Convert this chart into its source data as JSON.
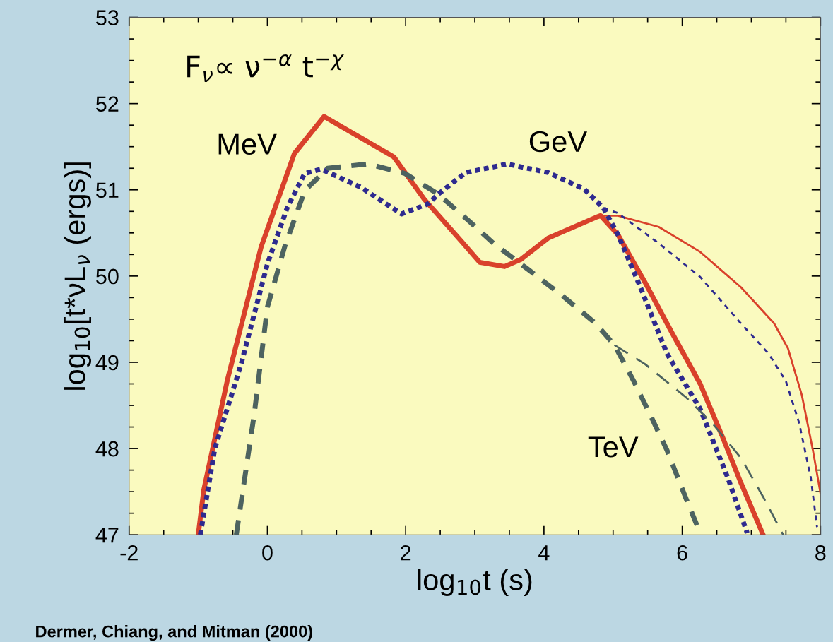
{
  "chart_data": {
    "type": "line",
    "xlabel": "log$_{10}$t (s)",
    "ylabel": "log$_{10}$[t*νL$_{ν}$ (ergs)]",
    "xlim": [
      -2,
      8
    ],
    "ylim": [
      47,
      53
    ],
    "xticks": [
      {
        "value": -2,
        "label": "-2"
      },
      0,
      2,
      4,
      6,
      8
    ],
    "yticks": [
      47,
      48,
      49,
      50,
      51,
      52,
      53
    ],
    "grid": false,
    "series": [
      {
        "name": "MeV",
        "color": "#d9412b",
        "line_style": "solid",
        "x": [
          -1.0,
          -0.92,
          -0.58,
          -0.09,
          0.15,
          0.39,
          0.82,
          1.83,
          2.27,
          2.81,
          3.07,
          3.43,
          3.66,
          4.06,
          4.75,
          4.82,
          5.07,
          5.46,
          5.86,
          6.26,
          6.58,
          6.85,
          7.17
        ],
        "values": [
          47.0,
          47.52,
          48.79,
          50.34,
          50.88,
          51.42,
          51.85,
          51.38,
          50.89,
          50.4,
          50.16,
          50.11,
          50.19,
          50.44,
          50.68,
          50.7,
          50.48,
          49.93,
          49.33,
          48.75,
          48.14,
          47.6,
          47.0
        ]
      },
      {
        "color": "#d9412b",
        "line_style": "solid",
        "x": [
          4.82,
          5.07,
          5.66,
          6.26,
          6.85,
          7.33,
          7.53,
          7.73,
          7.89,
          8.0
        ],
        "values": [
          50.7,
          50.7,
          50.57,
          50.28,
          49.87,
          49.45,
          49.16,
          48.62,
          47.98,
          47.48
        ]
      },
      {
        "name": "GeV",
        "color": "#2e2a8f",
        "line_style": "dotted",
        "x": [
          -0.97,
          -0.76,
          -0.38,
          0.0,
          0.29,
          0.54,
          0.78,
          1.35,
          1.94,
          2.33,
          2.47,
          2.87,
          3.47,
          4.06,
          4.58,
          4.86,
          5.07,
          5.38,
          5.78,
          6.26,
          6.66,
          6.94
        ],
        "values": [
          47.0,
          48.0,
          48.98,
          50.14,
          50.8,
          51.19,
          51.24,
          51.03,
          50.72,
          50.84,
          50.95,
          51.2,
          51.3,
          51.2,
          51.01,
          50.79,
          50.48,
          49.9,
          49.1,
          48.46,
          47.66,
          47.02
        ]
      },
      {
        "color": "#2e2a8f",
        "line_style": "dotted",
        "x": [
          4.86,
          5.07,
          5.66,
          6.26,
          6.85,
          7.25,
          7.5,
          7.69,
          7.86,
          7.95
        ],
        "values": [
          50.79,
          50.73,
          50.38,
          49.99,
          49.45,
          49.1,
          48.78,
          48.3,
          47.66,
          47.09
        ]
      },
      {
        "name": "TeV",
        "color": "#4d6360",
        "line_style": "dashed",
        "x": [
          -0.45,
          -0.19,
          0.0,
          0.25,
          0.54,
          0.87,
          1.46,
          1.99,
          2.47,
          2.9,
          3.27,
          3.75,
          4.27,
          4.75,
          5.02,
          5.3,
          5.55,
          5.78,
          6.06,
          6.26
        ],
        "values": [
          47.0,
          48.4,
          49.64,
          50.34,
          50.99,
          51.25,
          51.3,
          51.19,
          50.95,
          50.65,
          50.38,
          50.09,
          49.77,
          49.45,
          49.2,
          48.78,
          48.37,
          47.98,
          47.41,
          47.02
        ]
      },
      {
        "color": "#4d6360",
        "line_style": "dashed",
        "x": [
          5.02,
          5.46,
          6.06,
          6.46,
          6.85,
          7.17,
          7.46
        ],
        "values": [
          49.2,
          48.98,
          48.59,
          48.27,
          47.89,
          47.44,
          47.0
        ]
      }
    ],
    "annotations": [
      "F$_{ν}$∝ ν$^{−α}$ t$^{−χ}$",
      "Dermer, Chiang, and Mitman (2000)"
    ]
  }
}
